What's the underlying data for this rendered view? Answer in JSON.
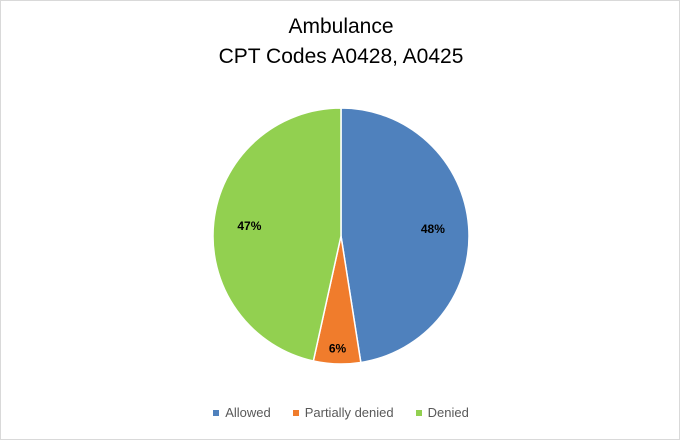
{
  "chart_data": {
    "type": "pie",
    "title": "Ambulance",
    "subtitle": "CPT Codes A0428, A0425",
    "categories": [
      "Allowed",
      "Partially denied",
      "Denied"
    ],
    "values": [
      48,
      6,
      47
    ],
    "labels": [
      "48%",
      "6%",
      "47%"
    ],
    "colors": [
      "#4f81bd",
      "#f07c2c",
      "#92d050"
    ],
    "legend_position": "bottom"
  }
}
